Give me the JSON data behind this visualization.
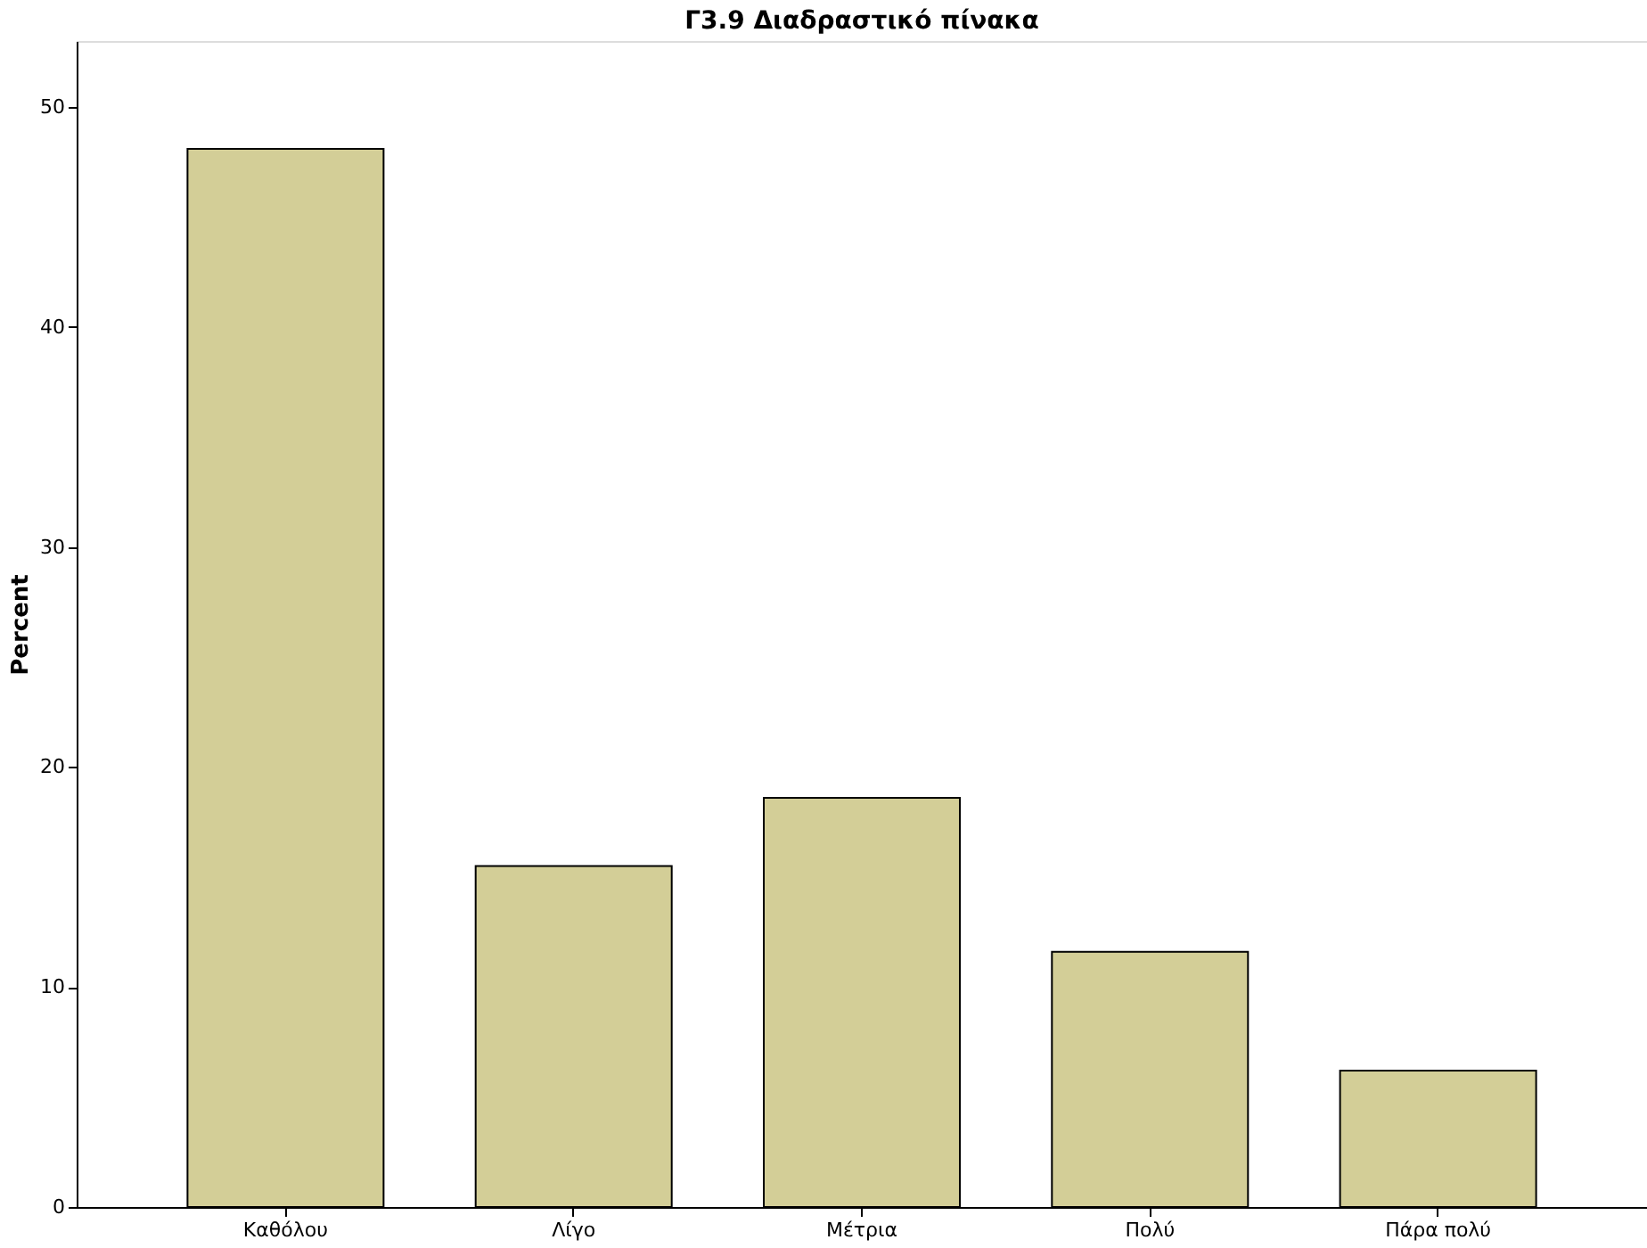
{
  "chart_data": {
    "type": "bar",
    "title": "Γ3.9 Διαδραστικό πίνακα",
    "ylabel": "Percent",
    "categories": [
      "Καθόλου",
      "Λίγο",
      "Μέτρια",
      "Πολύ",
      "Πάρα πολύ"
    ],
    "values": [
      48.1,
      15.5,
      18.6,
      11.6,
      6.2
    ],
    "color": "#d3ce97",
    "ylim": [
      0,
      53
    ],
    "yticks": [
      0,
      10,
      20,
      30,
      40,
      50
    ],
    "grid": false
  }
}
